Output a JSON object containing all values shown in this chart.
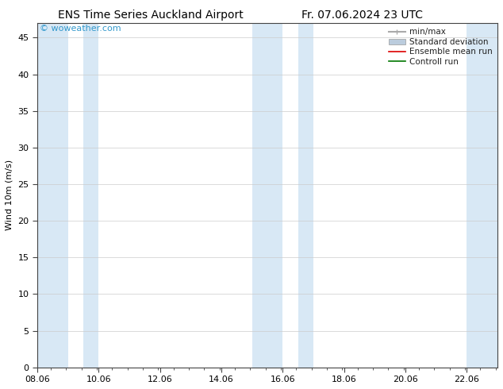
{
  "title_left": "ENS Time Series Auckland Airport",
  "title_right": "Fr. 07.06.2024 23 UTC",
  "ylabel": "Wind 10m (m/s)",
  "xlim_start": 8.06,
  "xlim_end": 23.06,
  "ylim": [
    0,
    47
  ],
  "yticks": [
    0,
    5,
    10,
    15,
    20,
    25,
    30,
    35,
    40,
    45
  ],
  "xtick_labels": [
    "08.06",
    "10.06",
    "12.06",
    "14.06",
    "16.06",
    "18.06",
    "20.06",
    "22.06"
  ],
  "xtick_positions": [
    8.06,
    10.06,
    12.06,
    14.06,
    16.06,
    18.06,
    20.06,
    22.06
  ],
  "bg_color": "#ffffff",
  "plot_bg_color": "#ffffff",
  "shade_color": "#d8e8f5",
  "shade_bands": [
    [
      8.06,
      9.06
    ],
    [
      9.56,
      10.06
    ],
    [
      15.06,
      16.06
    ],
    [
      16.56,
      17.06
    ],
    [
      22.06,
      23.5
    ]
  ],
  "watermark_text": "© woweather.com",
  "watermark_color": "#3399cc",
  "legend_items": [
    {
      "label": "min/max",
      "color": "#aaaaaa",
      "lw": 1.5,
      "style": "minmax"
    },
    {
      "label": "Standard deviation",
      "color": "#bbccdd",
      "lw": 5,
      "style": "fill"
    },
    {
      "label": "Ensemble mean run",
      "color": "#dd0000",
      "lw": 1.2,
      "style": "line"
    },
    {
      "label": "Controll run",
      "color": "#007700",
      "lw": 1.2,
      "style": "line"
    }
  ],
  "title_fontsize": 10,
  "tick_fontsize": 8,
  "ylabel_fontsize": 8,
  "watermark_fontsize": 8,
  "legend_fontsize": 7.5,
  "grid_color": "#cccccc",
  "axis_color": "#444444",
  "spine_color": "#444444"
}
